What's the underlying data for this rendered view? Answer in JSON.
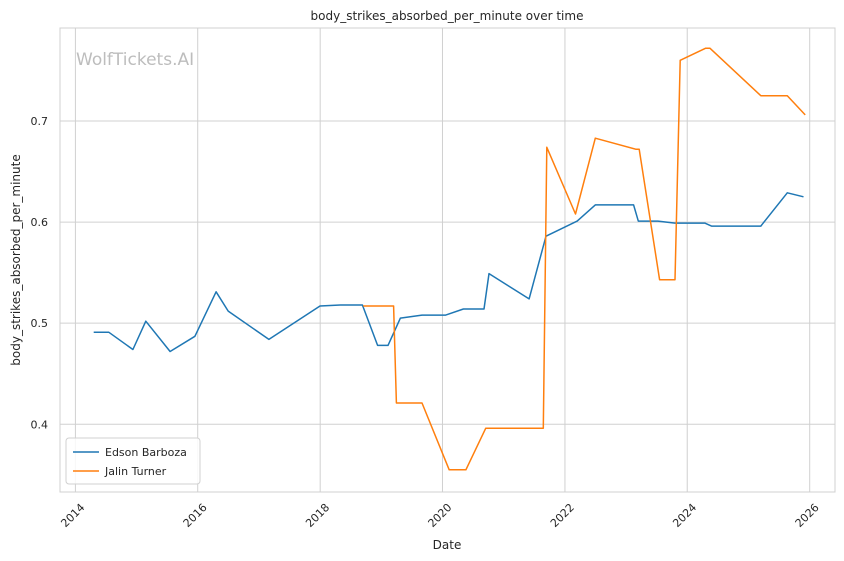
{
  "chart_data": {
    "type": "line",
    "title": "body_strikes_absorbed_per_minute over time",
    "xlabel": "Date",
    "ylabel": "body_strikes_absorbed_per_minute",
    "watermark": "WolfTickets.AI",
    "x_ticks": [
      "2014",
      "2016",
      "2018",
      "2020",
      "2022",
      "2024",
      "2026"
    ],
    "y_ticks": [
      "0.4",
      "0.5",
      "0.6",
      "0.7"
    ],
    "xlim": [
      "2013-10-01",
      "2026-06-01"
    ],
    "ylim": [
      0.333,
      0.792
    ],
    "grid": true,
    "legend_position": "lower-left",
    "series": [
      {
        "name": "Edson Barboza",
        "color": "#1f77b4",
        "points": [
          [
            "2014-04-20",
            0.491
          ],
          [
            "2014-07-20",
            0.491
          ],
          [
            "2014-12-10",
            0.474
          ],
          [
            "2015-02-25",
            0.502
          ],
          [
            "2015-07-20",
            0.472
          ],
          [
            "2015-12-15",
            0.487
          ],
          [
            "2016-04-20",
            0.531
          ],
          [
            "2016-07-01",
            0.512
          ],
          [
            "2017-03-01",
            0.484
          ],
          [
            "2017-12-31",
            0.517
          ],
          [
            "2018-05-01",
            0.518
          ],
          [
            "2018-09-10",
            0.518
          ],
          [
            "2018-12-10",
            0.478
          ],
          [
            "2019-02-10",
            0.478
          ],
          [
            "2019-04-25",
            0.505
          ],
          [
            "2019-09-01",
            0.508
          ],
          [
            "2020-01-20",
            0.508
          ],
          [
            "2020-05-05",
            0.514
          ],
          [
            "2020-09-05",
            0.514
          ],
          [
            "2020-10-05",
            0.549
          ],
          [
            "2021-06-01",
            0.524
          ],
          [
            "2021-09-10",
            0.586
          ],
          [
            "2022-03-15",
            0.601
          ],
          [
            "2022-07-01",
            0.617
          ],
          [
            "2023-02-15",
            0.617
          ],
          [
            "2023-03-15",
            0.601
          ],
          [
            "2023-07-10",
            0.601
          ],
          [
            "2023-10-20",
            0.599
          ],
          [
            "2024-04-15",
            0.599
          ],
          [
            "2024-05-25",
            0.596
          ],
          [
            "2025-03-15",
            0.596
          ],
          [
            "2025-08-20",
            0.629
          ],
          [
            "2025-11-25",
            0.625
          ]
        ]
      },
      {
        "name": "Jalin Turner",
        "color": "#ff7f0e",
        "points": [
          [
            "2018-09-15",
            0.517
          ],
          [
            "2019-03-15",
            0.517
          ],
          [
            "2019-04-01",
            0.421
          ],
          [
            "2019-09-01",
            0.421
          ],
          [
            "2020-02-10",
            0.355
          ],
          [
            "2020-05-20",
            0.355
          ],
          [
            "2020-09-15",
            0.396
          ],
          [
            "2021-08-25",
            0.396
          ],
          [
            "2021-09-15",
            0.674
          ],
          [
            "2022-03-05",
            0.608
          ],
          [
            "2022-07-01",
            0.683
          ],
          [
            "2023-03-01",
            0.672
          ],
          [
            "2023-03-20",
            0.672
          ],
          [
            "2023-07-20",
            0.543
          ],
          [
            "2023-10-20",
            0.543
          ],
          [
            "2023-11-20",
            0.76
          ],
          [
            "2024-04-20",
            0.772
          ],
          [
            "2024-05-15",
            0.772
          ],
          [
            "2025-03-15",
            0.725
          ],
          [
            "2025-08-20",
            0.725
          ],
          [
            "2025-12-05",
            0.706
          ]
        ]
      }
    ]
  }
}
